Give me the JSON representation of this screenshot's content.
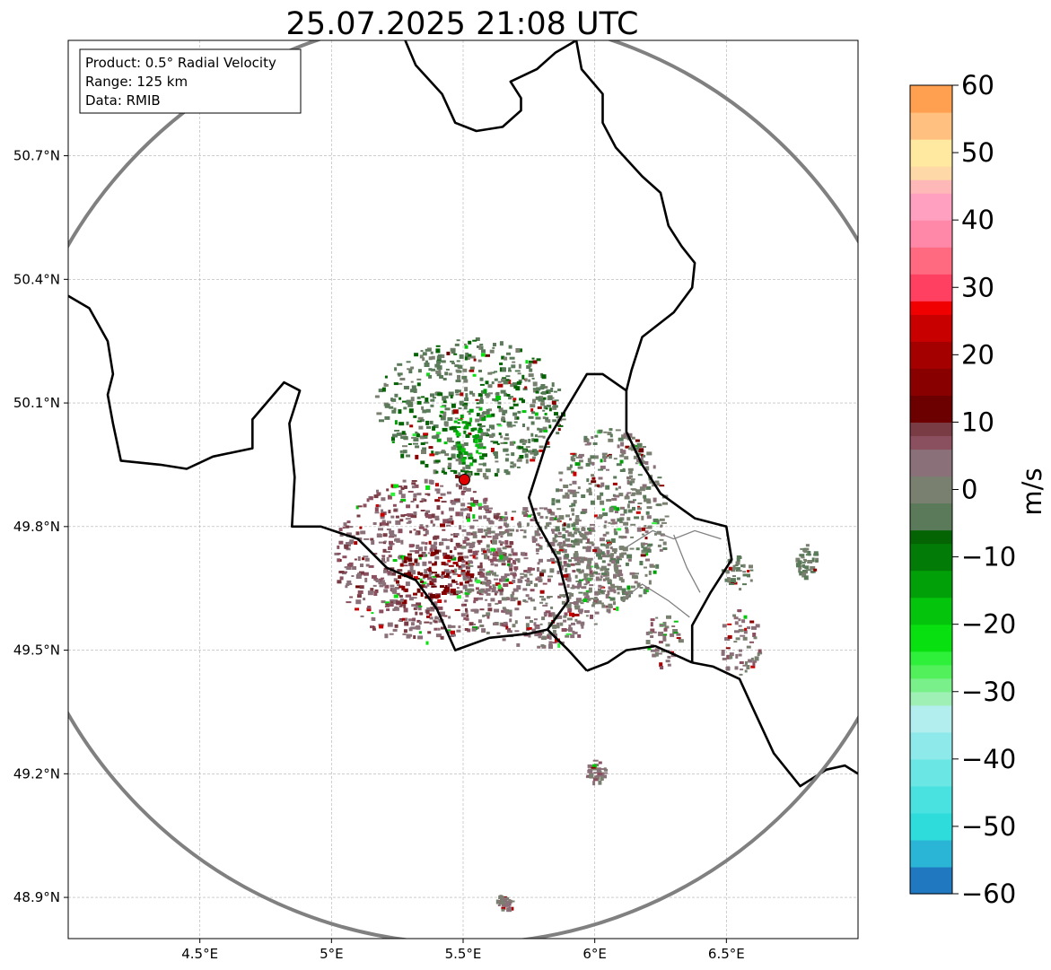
{
  "chart_data": {
    "type": "heatmap",
    "title": "25.07.2025 21:08 UTC",
    "info_box": [
      "Product: 0.5° Radial Velocity",
      "Range: 125 km",
      "Data: RMIB"
    ],
    "x_axis": {
      "range": [
        4.0,
        7.0
      ],
      "ticks": [
        4.5,
        5.0,
        5.5,
        6.0,
        6.5
      ],
      "tick_labels": [
        "4.5°E",
        "5°E",
        "5.5°E",
        "6°E",
        "6.5°E"
      ]
    },
    "y_axis": {
      "range": [
        48.8,
        50.98
      ],
      "ticks": [
        48.9,
        49.2,
        49.5,
        49.8,
        50.1,
        50.4,
        50.7
      ],
      "tick_labels": [
        "48.9°N",
        "49.2°N",
        "49.5°N",
        "49.8°N",
        "50.1°N",
        "50.4°N",
        "50.7°N"
      ]
    },
    "grid": true,
    "radar_site": {
      "lon": 5.505,
      "lat": 49.914
    },
    "range_ring": {
      "lon": 5.505,
      "lat": 49.914,
      "radius_km": 125
    },
    "colorbar": {
      "label": "m/s",
      "min": -60,
      "max": 60,
      "ticks": [
        60,
        50,
        40,
        30,
        20,
        10,
        0,
        -10,
        -20,
        -30,
        -40,
        -50,
        -60
      ],
      "tick_labels": [
        "60",
        "50",
        "40",
        "30",
        "20",
        "10",
        "0",
        "−10",
        "−20",
        "−30",
        "−40",
        "−50",
        "−60"
      ],
      "bands": [
        {
          "from": -60,
          "to": -56,
          "color": "#1f78c0"
        },
        {
          "from": -56,
          "to": -52,
          "color": "#2ab4d6"
        },
        {
          "from": -52,
          "to": -48,
          "color": "#2edcdc"
        },
        {
          "from": -48,
          "to": -44,
          "color": "#4ae2e0"
        },
        {
          "from": -44,
          "to": -40,
          "color": "#6ae6e4"
        },
        {
          "from": -40,
          "to": -36,
          "color": "#8eeaea"
        },
        {
          "from": -36,
          "to": -32,
          "color": "#b2eeee"
        },
        {
          "from": -32,
          "to": -30,
          "color": "#9ff0b4"
        },
        {
          "from": -30,
          "to": -28,
          "color": "#7af08a"
        },
        {
          "from": -28,
          "to": -26,
          "color": "#52f05a"
        },
        {
          "from": -26,
          "to": -24,
          "color": "#2ef03a"
        },
        {
          "from": -24,
          "to": -20,
          "color": "#08e010"
        },
        {
          "from": -20,
          "to": -16,
          "color": "#04c40c"
        },
        {
          "from": -16,
          "to": -12,
          "color": "#02a008"
        },
        {
          "from": -12,
          "to": -8,
          "color": "#027c06"
        },
        {
          "from": -8,
          "to": -6,
          "color": "#046404"
        },
        {
          "from": -6,
          "to": -2,
          "color": "#5a7a5a"
        },
        {
          "from": -2,
          "to": 2,
          "color": "#7a8070"
        },
        {
          "from": 2,
          "to": 6,
          "color": "#8a7078"
        },
        {
          "from": 6,
          "to": 8,
          "color": "#8a5060"
        },
        {
          "from": 8,
          "to": 10,
          "color": "#7a3c44"
        },
        {
          "from": 10,
          "to": 14,
          "color": "#6c0000"
        },
        {
          "from": 14,
          "to": 18,
          "color": "#880000"
        },
        {
          "from": 18,
          "to": 22,
          "color": "#a40000"
        },
        {
          "from": 22,
          "to": 26,
          "color": "#c80000"
        },
        {
          "from": 26,
          "to": 28,
          "color": "#f00000"
        },
        {
          "from": 28,
          "to": 32,
          "color": "#ff4060"
        },
        {
          "from": 32,
          "to": 36,
          "color": "#ff6a80"
        },
        {
          "from": 36,
          "to": 40,
          "color": "#ff88a8"
        },
        {
          "from": 40,
          "to": 44,
          "color": "#ffa0c0"
        },
        {
          "from": 44,
          "to": 46,
          "color": "#ffb8b8"
        },
        {
          "from": 46,
          "to": 48,
          "color": "#ffd8a8"
        },
        {
          "from": 48,
          "to": 52,
          "color": "#ffe8a0"
        },
        {
          "from": 52,
          "to": 56,
          "color": "#ffc080"
        },
        {
          "from": 56,
          "to": 60,
          "color": "#ffa050"
        }
      ]
    },
    "echo_regions": [
      {
        "name": "northern-inbound-area",
        "lon": 5.52,
        "lat": 50.09,
        "rlon": 0.36,
        "rlat": 0.17,
        "velocity": -4
      },
      {
        "name": "northern-inbound-core",
        "lon": 5.52,
        "lat": 50.02,
        "rlon": 0.07,
        "rlat": 0.07,
        "velocity": -14
      },
      {
        "name": "southwest-outbound-area",
        "lon": 5.35,
        "lat": 49.72,
        "rlon": 0.35,
        "rlat": 0.2,
        "velocity": 6
      },
      {
        "name": "southwest-outbound-core",
        "lon": 5.38,
        "lat": 49.69,
        "rlon": 0.15,
        "rlat": 0.06,
        "velocity": 14
      },
      {
        "name": "southeast-outbound-area",
        "lon": 5.78,
        "lat": 49.68,
        "rlon": 0.32,
        "rlat": 0.17,
        "velocity": 3
      },
      {
        "name": "eastern-near-zero-area",
        "lon": 6.05,
        "lat": 49.82,
        "rlon": 0.22,
        "rlat": 0.22,
        "velocity": 0
      },
      {
        "name": "cell-east-1",
        "lon": 6.55,
        "lat": 49.52,
        "rlon": 0.08,
        "rlat": 0.08,
        "velocity": 3
      },
      {
        "name": "cell-east-2",
        "lon": 6.26,
        "lat": 49.53,
        "rlon": 0.07,
        "rlat": 0.07,
        "velocity": 3
      },
      {
        "name": "cell-east-3",
        "lon": 6.54,
        "lat": 49.69,
        "rlon": 0.06,
        "rlat": 0.04,
        "velocity": -2
      },
      {
        "name": "cell-east-4",
        "lon": 6.8,
        "lat": 49.72,
        "rlon": 0.04,
        "rlat": 0.04,
        "velocity": -2
      },
      {
        "name": "cell-south-1",
        "lon": 6.0,
        "lat": 49.21,
        "rlon": 0.04,
        "rlat": 0.03,
        "velocity": 3
      },
      {
        "name": "cell-south-2",
        "lon": 5.65,
        "lat": 48.89,
        "rlon": 0.03,
        "rlat": 0.02,
        "velocity": 3
      }
    ],
    "borders": {
      "belgium_france": [
        [
          4.0,
          50.36
        ],
        [
          4.08,
          50.33
        ],
        [
          4.15,
          50.25
        ],
        [
          4.17,
          50.17
        ],
        [
          4.15,
          50.12
        ],
        [
          4.17,
          50.05
        ],
        [
          4.2,
          49.96
        ],
        [
          4.35,
          49.95
        ],
        [
          4.45,
          49.94
        ],
        [
          4.55,
          49.97
        ],
        [
          4.7,
          49.99
        ],
        [
          4.7,
          50.06
        ],
        [
          4.82,
          50.15
        ],
        [
          4.88,
          50.13
        ],
        [
          4.84,
          50.05
        ],
        [
          4.86,
          49.92
        ],
        [
          4.85,
          49.8
        ],
        [
          4.96,
          49.8
        ],
        [
          5.1,
          49.77
        ],
        [
          5.21,
          49.7
        ],
        [
          5.32,
          49.67
        ],
        [
          5.4,
          49.6
        ],
        [
          5.47,
          49.5
        ],
        [
          5.6,
          49.53
        ],
        [
          5.75,
          49.54
        ],
        [
          5.82,
          49.55
        ],
        [
          5.9,
          49.5
        ],
        [
          5.97,
          49.45
        ]
      ],
      "belgium_luxembourg": [
        [
          5.82,
          49.55
        ],
        [
          5.9,
          49.62
        ],
        [
          5.86,
          49.72
        ],
        [
          5.78,
          49.81
        ],
        [
          5.75,
          49.87
        ],
        [
          5.82,
          50.01
        ],
        [
          5.97,
          50.17
        ],
        [
          6.03,
          50.17
        ],
        [
          6.12,
          50.13
        ]
      ],
      "belgium_germany": [
        [
          6.12,
          50.13
        ],
        [
          6.14,
          50.18
        ],
        [
          6.18,
          50.26
        ],
        [
          6.3,
          50.32
        ],
        [
          6.37,
          50.38
        ],
        [
          6.38,
          50.44
        ],
        [
          6.33,
          50.48
        ],
        [
          6.28,
          50.53
        ],
        [
          6.25,
          50.61
        ],
        [
          6.18,
          50.65
        ],
        [
          6.08,
          50.72
        ],
        [
          6.03,
          50.78
        ],
        [
          6.03,
          50.85
        ],
        [
          5.95,
          50.91
        ],
        [
          5.93,
          50.98
        ]
      ],
      "netherlands_belgium": [
        [
          5.93,
          50.98
        ],
        [
          5.85,
          50.95
        ],
        [
          5.78,
          50.91
        ],
        [
          5.68,
          50.88
        ],
        [
          5.72,
          50.84
        ],
        [
          5.72,
          50.81
        ],
        [
          5.65,
          50.77
        ],
        [
          5.55,
          50.76
        ],
        [
          5.47,
          50.78
        ],
        [
          5.42,
          50.85
        ],
        [
          5.32,
          50.92
        ],
        [
          5.28,
          50.98
        ]
      ],
      "luxembourg_germany": [
        [
          6.12,
          50.13
        ],
        [
          6.12,
          50.03
        ],
        [
          6.18,
          49.95
        ],
        [
          6.25,
          49.88
        ],
        [
          6.38,
          49.82
        ],
        [
          6.5,
          49.8
        ],
        [
          6.52,
          49.72
        ],
        [
          6.44,
          49.64
        ],
        [
          6.37,
          49.56
        ],
        [
          6.37,
          49.47
        ]
      ],
      "luxembourg_france": [
        [
          5.97,
          49.45
        ],
        [
          6.05,
          49.47
        ],
        [
          6.12,
          49.5
        ],
        [
          6.23,
          49.51
        ],
        [
          6.37,
          49.47
        ]
      ],
      "france_germany": [
        [
          6.37,
          49.47
        ],
        [
          6.45,
          49.46
        ],
        [
          6.55,
          49.43
        ],
        [
          6.6,
          49.36
        ],
        [
          6.68,
          49.25
        ],
        [
          6.78,
          49.17
        ],
        [
          6.88,
          49.21
        ],
        [
          6.95,
          49.22
        ],
        [
          7.0,
          49.2
        ]
      ]
    },
    "internal_lines": [
      [
        [
          6.12,
          49.75
        ],
        [
          6.22,
          49.79
        ],
        [
          6.3,
          49.77
        ],
        [
          6.38,
          49.79
        ],
        [
          6.48,
          49.77
        ]
      ],
      [
        [
          6.1,
          49.62
        ],
        [
          6.18,
          49.66
        ],
        [
          6.28,
          49.62
        ],
        [
          6.36,
          49.58
        ]
      ],
      [
        [
          6.3,
          49.78
        ],
        [
          6.35,
          49.7
        ],
        [
          6.4,
          49.64
        ]
      ]
    ]
  }
}
